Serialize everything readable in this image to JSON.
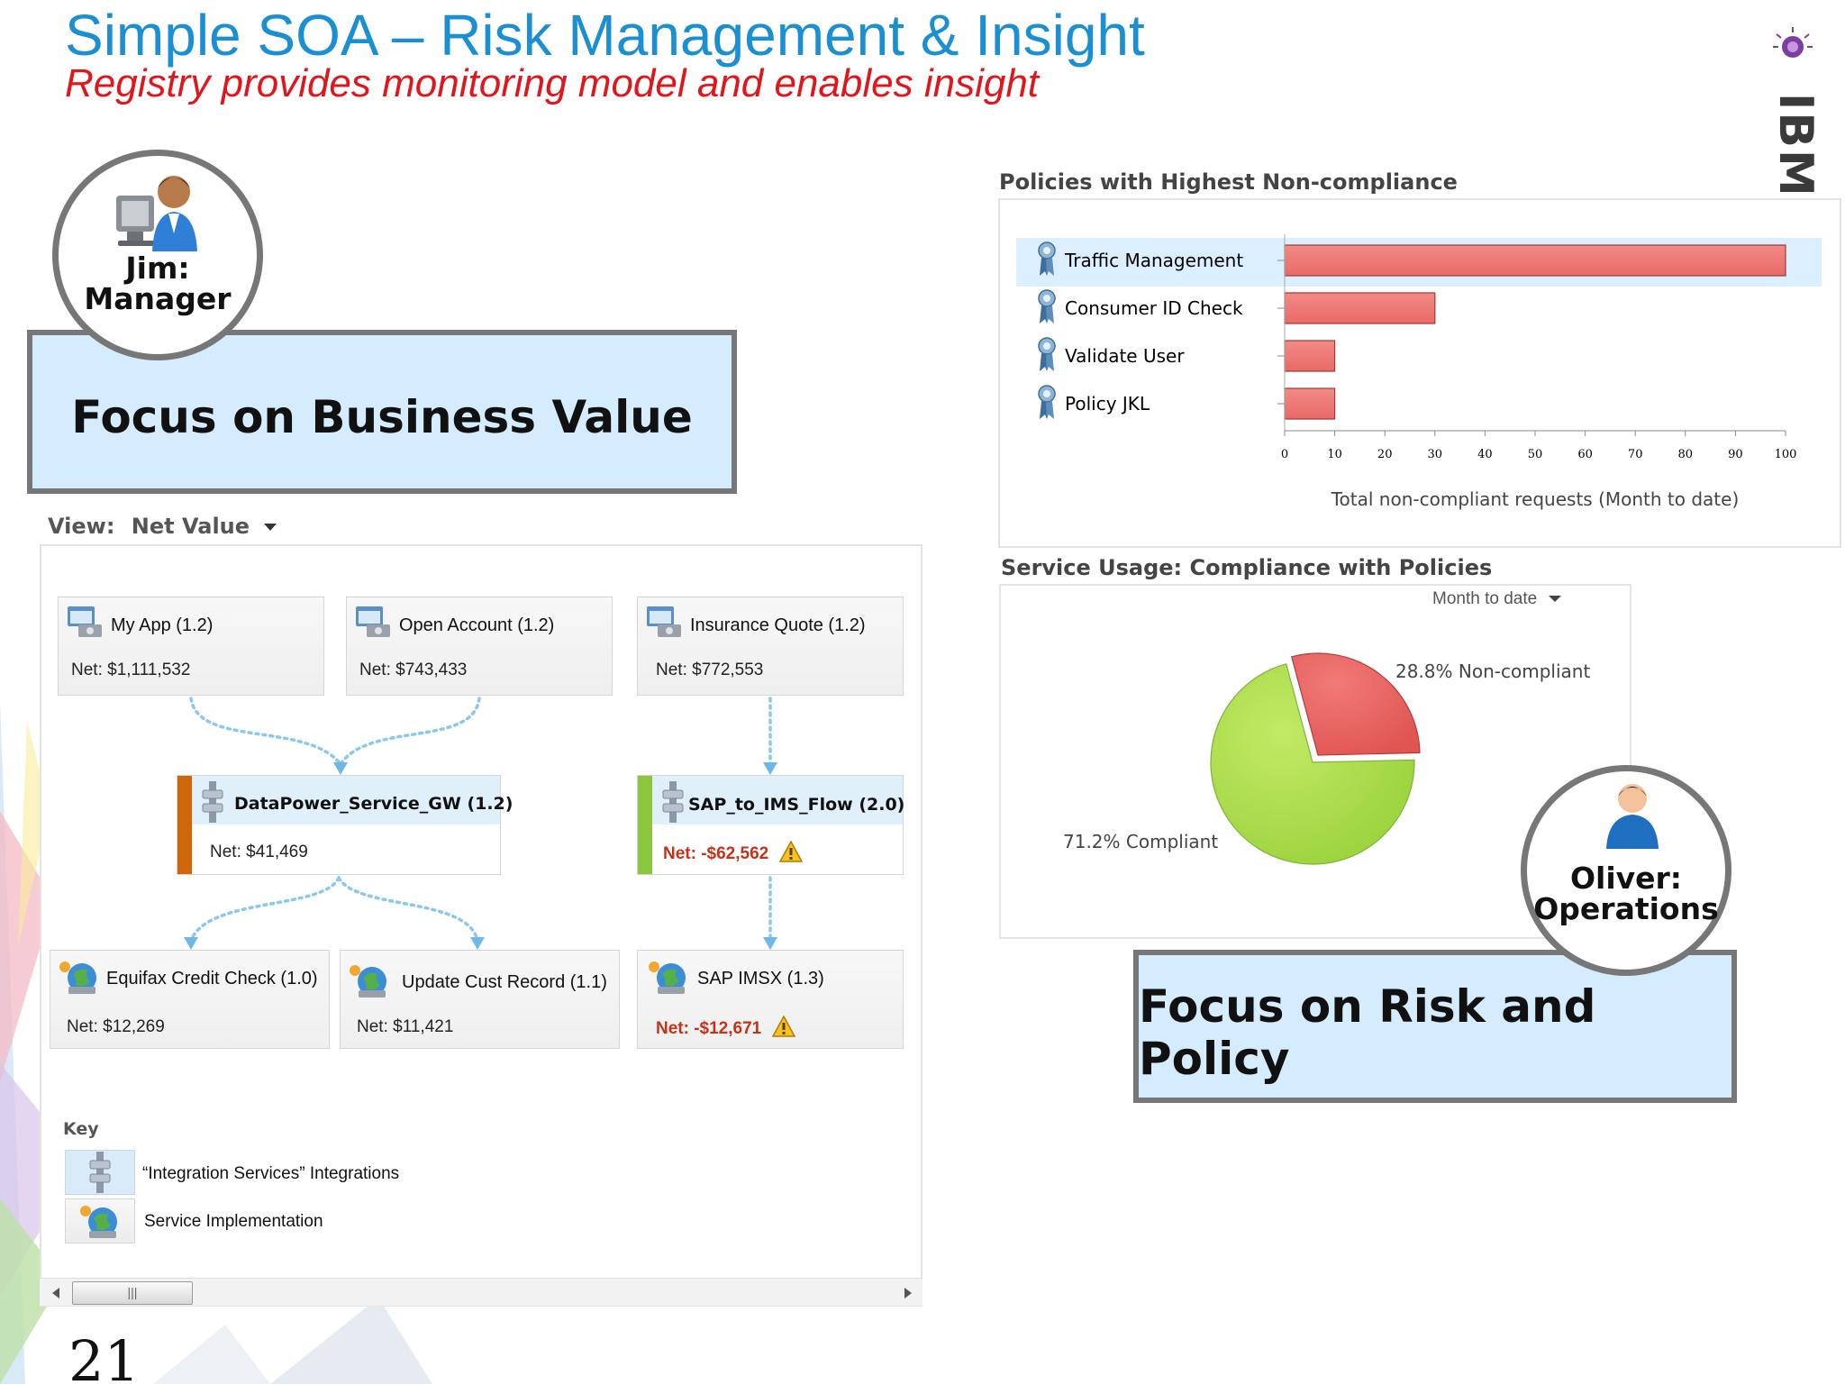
{
  "slide": {
    "title": "Simple SOA – Risk Management & Insight",
    "subtitle": "Registry provides monitoring model and enables insight",
    "page_number": "21",
    "logo_text": "IBM"
  },
  "colors": {
    "title": "#1a8fd1",
    "subtitle": "#e0161c",
    "focus_fill": "#d4ecfd",
    "bar": "#e96a66",
    "pie_green": "#9ad23c",
    "pie_red": "#e05452"
  },
  "persona_manager": {
    "name_line1": "Jim:",
    "name_line2": "Manager",
    "focus_label": "Focus on Business Value",
    "icon": "manager-at-computer-icon"
  },
  "persona_operations": {
    "name_line1": "Oliver:",
    "name_line2": "Operations",
    "focus_label": "Focus on Risk and Policy",
    "icon": "operator-person-icon"
  },
  "view": {
    "label": "View:",
    "value": "Net Value"
  },
  "flow": {
    "apps": [
      {
        "name": "My App (1.2)",
        "net": "Net: $1,111,532",
        "icon": "application-icon"
      },
      {
        "name": "Open Account (1.2)",
        "net": "Net: $743,433",
        "icon": "application-icon"
      },
      {
        "name": "Insurance Quote (1.2)",
        "net": "Net: $772,553",
        "icon": "application-icon"
      }
    ],
    "gateways": [
      {
        "name": "DataPower_Service_GW (1.2)",
        "net": "Net: $41,469",
        "status": "#d0650c",
        "icon": "integration-service-icon",
        "warning": false
      },
      {
        "name": "SAP_to_IMS_Flow (2.0)",
        "net": "Net: -$62,562",
        "status": "#8cc63f",
        "icon": "integration-service-icon",
        "warning": true
      }
    ],
    "services": [
      {
        "name": "Equifax Credit Check (1.0)",
        "net": "Net: $12,269",
        "icon": "service-implementation-icon",
        "warning": false
      },
      {
        "name": "Update Cust Record (1.1)",
        "net": "Net: $11,421",
        "icon": "service-implementation-icon",
        "warning": false
      },
      {
        "name": "SAP IMSX (1.3)",
        "net": "Net: -$12,671",
        "icon": "service-implementation-icon",
        "warning": true
      }
    ]
  },
  "key": {
    "title": "Key",
    "items": [
      {
        "label": "“Integration Services” Integrations",
        "icon": "integration-service-icon"
      },
      {
        "label": "Service Implementation",
        "icon": "service-implementation-icon"
      }
    ]
  },
  "policies_panel": {
    "title": "Policies with Highest Non-compliance"
  },
  "usage_panel": {
    "title": "Service Usage: Compliance with Policies",
    "period": "Month to date"
  },
  "chart_data": [
    {
      "type": "bar",
      "orientation": "horizontal",
      "categories": [
        "Traffic Management",
        "Consumer ID Check",
        "Validate User",
        "Policy JKL"
      ],
      "values": [
        100,
        30,
        10,
        10
      ],
      "xlabel": "Total non-compliant requests (Month to date)",
      "xlim": [
        0,
        100
      ],
      "ticks": [
        0,
        10,
        20,
        30,
        40,
        50,
        60,
        70,
        80,
        90,
        100
      ],
      "highlighted": "Traffic Management",
      "grid": false
    },
    {
      "type": "pie",
      "slices": [
        {
          "label": "28.8% Non-compliant",
          "value": 28.8,
          "color": "#e05452"
        },
        {
          "label": "71.2% Compliant",
          "value": 71.2,
          "color": "#9ad23c"
        }
      ]
    }
  ]
}
